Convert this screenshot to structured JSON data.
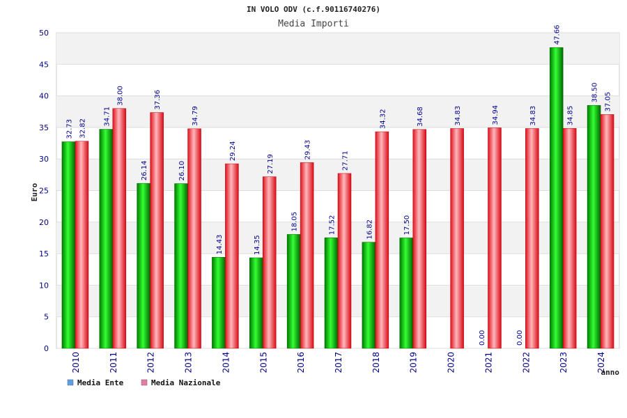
{
  "chart_data": {
    "type": "bar",
    "title": "IN VOLO ODV (c.f.90116740276)",
    "subtitle": "Media Importi",
    "ylabel": "Euro",
    "xlabel": "anno",
    "ylim": [
      0,
      50
    ],
    "yticks": [
      0,
      5,
      10,
      15,
      20,
      25,
      30,
      35,
      40,
      45,
      50
    ],
    "grid": true,
    "legend_position": "bottom-left",
    "categories": [
      "2010",
      "2011",
      "2012",
      "2013",
      "2014",
      "2015",
      "2016",
      "2017",
      "2018",
      "2019",
      "2020",
      "2021",
      "2022",
      "2023",
      "2024"
    ],
    "series": [
      {
        "name": "Media Ente",
        "color": "#00b000",
        "legend_color": "#5aa0e8",
        "values": [
          32.73,
          34.71,
          26.14,
          26.1,
          14.43,
          14.35,
          18.05,
          17.52,
          16.82,
          17.5,
          null,
          0.0,
          0.0,
          47.66,
          38.5
        ],
        "labels": [
          "32.73",
          "34.71",
          "26.14",
          "26.10",
          "14.43",
          "14.35",
          "18.05",
          "17.52",
          "16.82",
          "17.50",
          "",
          "0.00",
          "0.00",
          "47.66",
          "38.50"
        ]
      },
      {
        "name": "Media Nazionale",
        "color": "#e8202a",
        "legend_color": "#e87aa8",
        "values": [
          32.82,
          38.0,
          37.36,
          34.79,
          29.24,
          27.19,
          29.43,
          27.71,
          34.32,
          34.68,
          34.83,
          34.94,
          34.83,
          34.85,
          37.05
        ],
        "labels": [
          "32.82",
          "38.00",
          "37.36",
          "34.79",
          "29.24",
          "27.19",
          "29.43",
          "27.71",
          "34.32",
          "34.68",
          "34.83",
          "34.94",
          "34.83",
          "34.85",
          "37.05"
        ]
      }
    ]
  }
}
